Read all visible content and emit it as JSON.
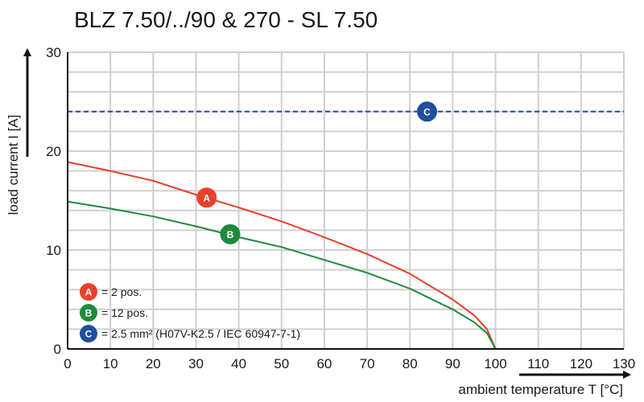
{
  "chart_data": {
    "type": "line",
    "title": "BLZ 7.50/../90 & 270 - SL 7.50",
    "xlabel": "ambient temperature T [°C]",
    "ylabel": "load current I [A]",
    "xlim": [
      0,
      130
    ],
    "ylim": [
      0,
      30
    ],
    "xticks": [
      "0",
      "10",
      "20",
      "30",
      "40",
      "50",
      "60",
      "70",
      "80",
      "90",
      "100",
      "110",
      "120",
      "130"
    ],
    "yticks": [
      "0",
      "10",
      "20",
      "30"
    ],
    "grid": true,
    "series": [
      {
        "marker": "A",
        "color": "#e8412c",
        "style": "solid",
        "x": [
          0,
          10,
          20,
          30,
          40,
          50,
          60,
          70,
          80,
          90,
          95,
          98,
          100
        ],
        "y": [
          18.9,
          18.0,
          17.0,
          15.6,
          14.3,
          12.9,
          11.3,
          9.6,
          7.6,
          5.0,
          3.4,
          2.0,
          0
        ],
        "label_at": [
          32.5,
          15.3
        ]
      },
      {
        "marker": "B",
        "color": "#1e8a3c",
        "style": "solid",
        "x": [
          0,
          10,
          20,
          30,
          40,
          50,
          60,
          70,
          80,
          90,
          95,
          98,
          100
        ],
        "y": [
          14.9,
          14.2,
          13.4,
          12.4,
          11.3,
          10.3,
          9.0,
          7.7,
          6.1,
          4.0,
          2.7,
          1.6,
          0
        ],
        "label_at": [
          38,
          11.6
        ]
      },
      {
        "marker": "C",
        "color": "#1e4f9c",
        "style": "dashed",
        "x": [
          0,
          130
        ],
        "y": [
          24,
          24
        ],
        "label_at": [
          84,
          24
        ]
      }
    ],
    "legend": {
      "placement": "bottom-left",
      "items": [
        {
          "marker": "A",
          "color": "#e8412c",
          "text": "= 2 pos."
        },
        {
          "marker": "B",
          "color": "#1e8a3c",
          "text": "= 12 pos."
        },
        {
          "marker": "C",
          "color": "#1e4f9c",
          "text": "= 2.5 mm² (H07V-K2.5 / IEC 60947-7-1)"
        }
      ]
    }
  }
}
